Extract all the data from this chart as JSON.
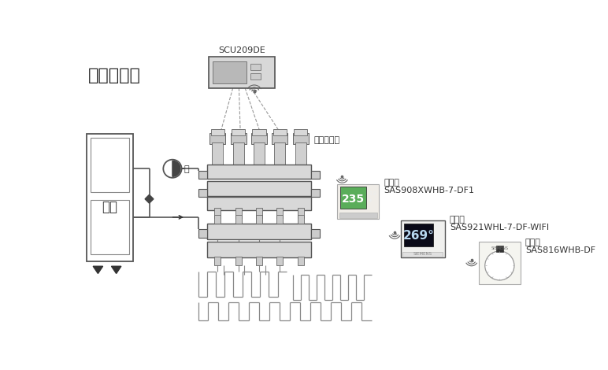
{
  "title": "系统示意图",
  "scu_label": "SCU209DE",
  "actuator_label": "电热执行器",
  "thermostat1_label": "温控器",
  "thermostat1_model": "SAS908XWHB-7-DF1",
  "thermostat2_label": "温控器",
  "thermostat2_model": "SAS921WHL-7-DF-WIFI",
  "thermostat3_label": "温控器",
  "thermostat3_model": "SAS816WHB-DF",
  "pump_label": "泵",
  "boiler_label": "锅炉",
  "bg_color": "#ffffff",
  "lc": "#555555",
  "gray1": "#cccccc",
  "gray2": "#999999",
  "gray3": "#e0e0e0",
  "dark": "#333333"
}
